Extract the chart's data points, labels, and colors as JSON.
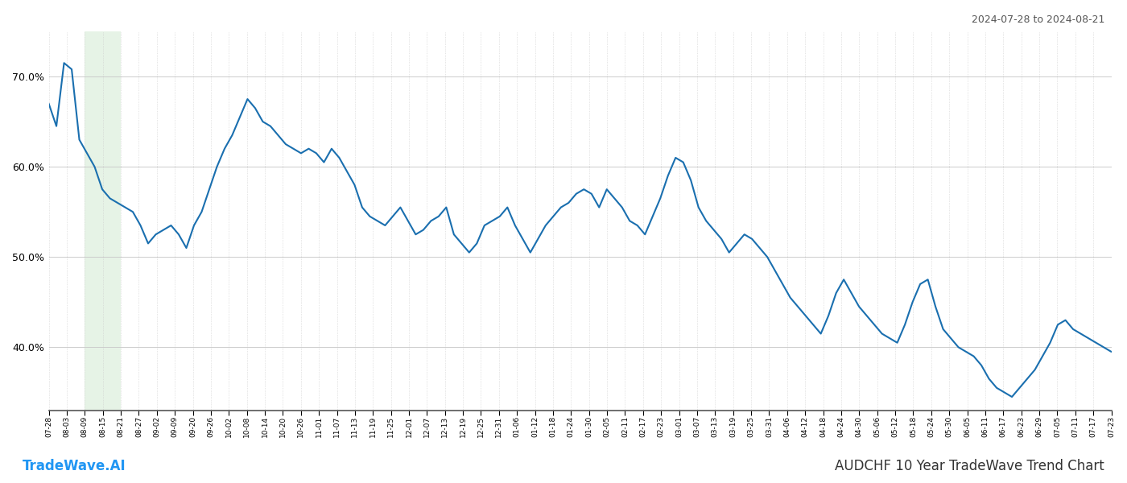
{
  "title_right": "2024-07-28 to 2024-08-21",
  "title_bottom_left": "TradeWave.AI",
  "title_bottom_right": "AUDCHF 10 Year TradeWave Trend Chart",
  "line_color": "#1a6faf",
  "line_width": 1.5,
  "highlight_color": "#c8e6c9",
  "highlight_alpha": 0.45,
  "bg_color": "#ffffff",
  "grid_color": "#cccccc",
  "ylim": [
    33,
    75
  ],
  "yticks": [
    40.0,
    50.0,
    60.0,
    70.0
  ],
  "x_labels": [
    "07-28",
    "08-03",
    "08-09",
    "08-15",
    "08-21",
    "08-27",
    "09-02",
    "09-09",
    "09-20",
    "09-26",
    "10-02",
    "10-08",
    "10-14",
    "10-20",
    "10-26",
    "11-01",
    "11-07",
    "11-13",
    "11-19",
    "11-25",
    "12-01",
    "12-07",
    "12-13",
    "12-19",
    "12-25",
    "12-31",
    "01-06",
    "01-12",
    "01-18",
    "01-24",
    "01-30",
    "02-05",
    "02-11",
    "02-17",
    "02-23",
    "03-01",
    "03-07",
    "03-13",
    "03-19",
    "03-25",
    "03-31",
    "04-06",
    "04-12",
    "04-18",
    "04-24",
    "04-30",
    "05-06",
    "05-12",
    "05-18",
    "05-24",
    "05-30",
    "06-05",
    "06-11",
    "06-17",
    "06-23",
    "06-29",
    "07-05",
    "07-11",
    "07-17",
    "07-23"
  ],
  "highlight_start_label": "08-09",
  "highlight_end_label": "08-21",
  "values": [
    67.0,
    64.5,
    71.5,
    70.8,
    63.0,
    61.5,
    60.0,
    57.5,
    56.5,
    56.0,
    55.5,
    55.0,
    53.5,
    51.5,
    52.5,
    53.0,
    53.5,
    52.5,
    51.0,
    53.5,
    55.0,
    57.5,
    60.0,
    62.0,
    63.5,
    65.5,
    67.5,
    66.5,
    65.0,
    64.5,
    63.5,
    62.5,
    62.0,
    61.5,
    62.0,
    61.5,
    60.5,
    62.0,
    61.0,
    59.5,
    58.0,
    55.5,
    54.5,
    54.0,
    53.5,
    54.5,
    55.5,
    54.0,
    52.5,
    53.0,
    54.0,
    54.5,
    55.5,
    52.5,
    51.5,
    50.5,
    51.5,
    53.5,
    54.0,
    54.5,
    55.5,
    53.5,
    52.0,
    50.5,
    52.0,
    53.5,
    54.5,
    55.5,
    56.0,
    57.0,
    57.5,
    57.0,
    55.5,
    57.5,
    56.5,
    55.5,
    54.0,
    53.5,
    52.5,
    54.5,
    56.5,
    59.0,
    61.0,
    60.5,
    58.5,
    55.5,
    54.0,
    53.0,
    52.0,
    50.5,
    51.5,
    52.5,
    52.0,
    51.0,
    50.0,
    48.5,
    47.0,
    45.5,
    44.5,
    43.5,
    42.5,
    41.5,
    43.5,
    46.0,
    47.5,
    46.0,
    44.5,
    43.5,
    42.5,
    41.5,
    41.0,
    40.5,
    42.5,
    45.0,
    47.0,
    47.5,
    44.5,
    42.0,
    41.0,
    40.0,
    39.5,
    39.0,
    38.0,
    36.5,
    35.5,
    35.0,
    34.5,
    35.5,
    36.5,
    37.5,
    39.0,
    40.5,
    42.5,
    43.0,
    42.0,
    41.5,
    41.0,
    40.5,
    40.0,
    39.5
  ]
}
